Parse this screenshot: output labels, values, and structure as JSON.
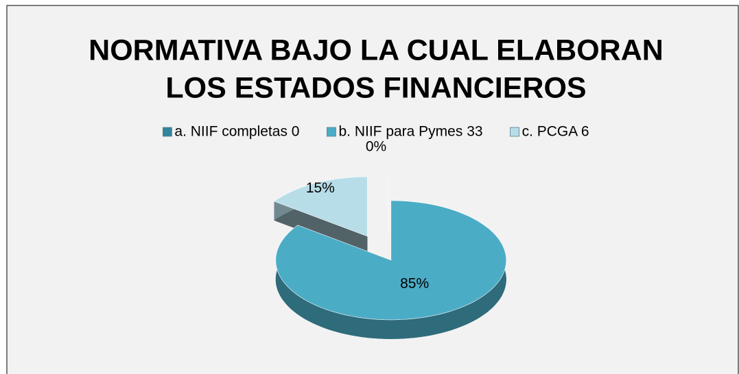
{
  "chart_data": {
    "type": "pie",
    "title": [
      "NORMATIVA BAJO LA CUAL ELABORAN",
      "LOS ESTADOS FINANCIEROS"
    ],
    "categories": [
      "a. NIIF completas 0",
      "b. NIIF para Pymes 33",
      "c. PCGA 6"
    ],
    "values": [
      0,
      85,
      15
    ],
    "value_labels": [
      "0%",
      "85%",
      "15%"
    ],
    "colors": [
      "#31859c",
      "#4bacc6",
      "#b7dde8"
    ],
    "legend": "top"
  }
}
